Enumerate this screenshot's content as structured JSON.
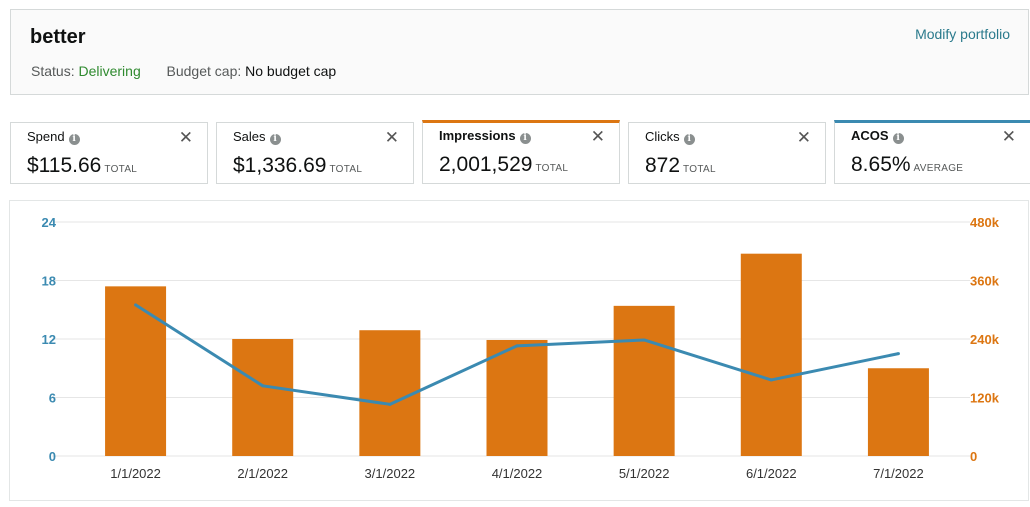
{
  "header": {
    "title": "better",
    "status_label": "Status:",
    "status_value": "Delivering",
    "budget_label": "Budget cap:",
    "budget_value": "No budget cap",
    "modify_link": "Modify portfolio"
  },
  "metrics": [
    {
      "label": "Spend",
      "value": "$115.66",
      "suffix": "TOTAL"
    },
    {
      "label": "Sales",
      "value": "$1,336.69",
      "suffix": "TOTAL"
    },
    {
      "label": "Impressions",
      "value": "2,001,529",
      "suffix": "TOTAL"
    },
    {
      "label": "Clicks",
      "value": "872",
      "suffix": "TOTAL"
    },
    {
      "label": "ACOS",
      "value": "8.65%",
      "suffix": "AVERAGE"
    }
  ],
  "colors": {
    "impressions": "#dc7612",
    "acos": "#3b8ab1",
    "grid": "#e6e6e6"
  },
  "chart_data": {
    "type": "bar",
    "categories": [
      "1/1/2022",
      "2/1/2022",
      "3/1/2022",
      "4/1/2022",
      "5/1/2022",
      "6/1/2022",
      "7/1/2022"
    ],
    "series": [
      {
        "name": "Impressions",
        "type": "bar",
        "axis": "right",
        "values": [
          348000,
          240000,
          258000,
          238000,
          308000,
          415000,
          180000
        ]
      },
      {
        "name": "ACOS",
        "type": "line",
        "axis": "left",
        "values": [
          15.5,
          7.2,
          5.3,
          11.3,
          11.9,
          7.8,
          10.5
        ]
      }
    ],
    "left_ticks": [
      "0",
      "6",
      "12",
      "18",
      "24"
    ],
    "right_ticks": [
      "0",
      "120k",
      "240k",
      "360k",
      "480k"
    ],
    "ylim_left": [
      0,
      24
    ],
    "ylim_right": [
      0,
      480000
    ],
    "grid": true
  }
}
